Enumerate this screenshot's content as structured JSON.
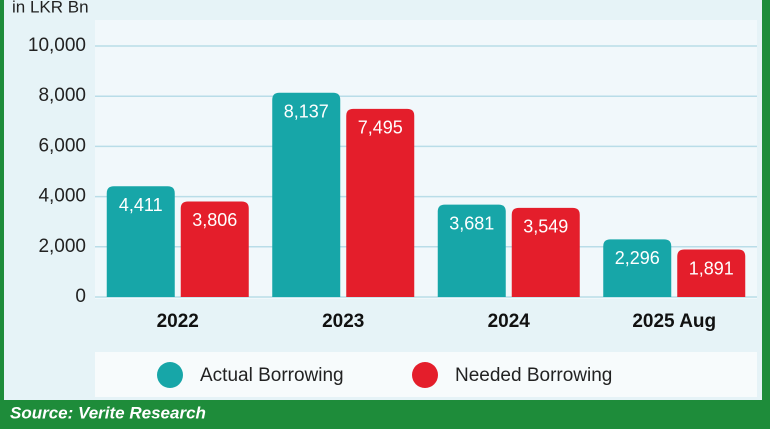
{
  "chart_data": {
    "type": "bar",
    "y_label": "in LKR Bn",
    "categories": [
      "2022",
      "2023",
      "2024",
      "2025 Aug"
    ],
    "series": [
      {
        "name": "Actual Borrowing",
        "color": "#17a6a8",
        "values": [
          4411,
          8137,
          3681,
          2296
        ],
        "value_labels": [
          "4,411",
          "8,137",
          "3,681",
          "2,296"
        ]
      },
      {
        "name": "Needed Borrowing",
        "color": "#e41e2b",
        "values": [
          3806,
          7495,
          3549,
          1891
        ],
        "value_labels": [
          "3,806",
          "7,495",
          "3,549",
          "1,891"
        ]
      }
    ],
    "ylim": [
      0,
      10000
    ],
    "yticks": [
      0,
      {
        "value": 2000,
        "label": "2,000"
      },
      {
        "value": 4000,
        "label": "4,000"
      },
      {
        "value": 6000,
        "label": "6,000"
      },
      {
        "value": 8000,
        "label": "8,000"
      },
      {
        "value": 10000,
        "label": "10,000"
      }
    ],
    "grid": true,
    "source": "Source: Verite Research"
  }
}
